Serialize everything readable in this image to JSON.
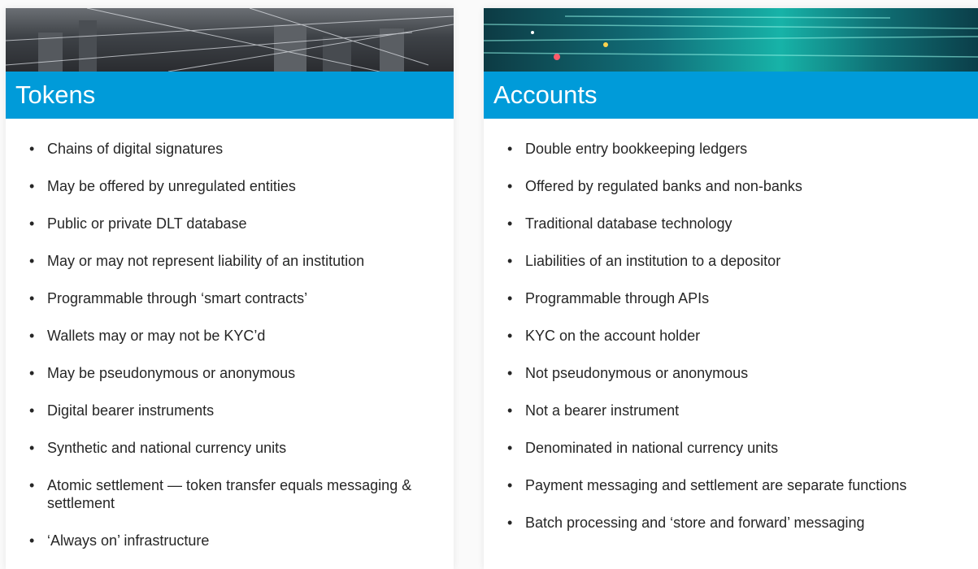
{
  "cards": [
    {
      "title": "Tokens",
      "items": [
        "Chains of digital signatures",
        "May be offered by unregulated entities",
        "Public or private DLT database",
        "May or may not represent liability of an institution",
        "Programmable through ‘smart contracts’",
        "Wallets may or may not be KYC’d",
        "May be pseudonymous or anonymous",
        "Digital bearer instruments",
        "Synthetic and national currency units",
        "Atomic settlement — token transfer equals messaging & settlement",
        "‘Always on’ infrastructure"
      ]
    },
    {
      "title": "Accounts",
      "items": [
        "Double entry bookkeeping ledgers",
        "Offered by regulated banks and non-banks",
        "Traditional database technology",
        "Liabilities of an institution to a depositor",
        "Programmable through APIs",
        "KYC on the account holder",
        "Not pseudonymous or anonymous",
        "Not a bearer instrument",
        "Denominated in national currency units",
        "Payment messaging and settlement are separate functions",
        "Batch processing and ‘store and forward’ messaging"
      ]
    }
  ]
}
